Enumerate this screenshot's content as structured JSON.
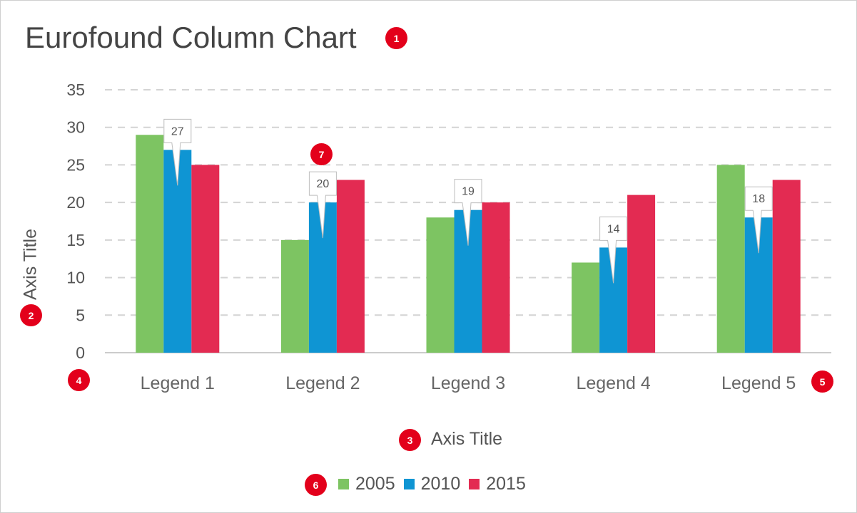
{
  "title": "Eurofound Column Chart",
  "badges": {
    "b1": "1",
    "b2": "2",
    "b3": "3",
    "b4": "4",
    "b5": "5",
    "b6": "6",
    "b7": "7"
  },
  "colors": {
    "2005": "#7dc462",
    "2010": "#0f95d3",
    "2015": "#e32b52",
    "grid": "#d4d4d4",
    "axis": "#cccccc",
    "badge": "#e3001b"
  },
  "chart_data": {
    "type": "bar",
    "title": "Eurofound Column Chart",
    "xlabel": "Axis Title",
    "ylabel": "Axis Title",
    "categories": [
      "Legend 1",
      "Legend 2",
      "Legend 3",
      "Legend 4",
      "Legend 5"
    ],
    "series": [
      {
        "name": "2005",
        "values": [
          29,
          15,
          18,
          12,
          25
        ]
      },
      {
        "name": "2010",
        "values": [
          27,
          20,
          19,
          14,
          18
        ]
      },
      {
        "name": "2015",
        "values": [
          25,
          23,
          20,
          21,
          23
        ]
      }
    ],
    "ylim": [
      0,
      35
    ],
    "yticks": [
      0,
      5,
      10,
      15,
      20,
      25,
      30,
      35
    ],
    "grid": true,
    "gridstyle": "dashed",
    "legend_position": "bottom",
    "data_labels": {
      "series": "2010",
      "labels": [
        "27",
        "20",
        "19",
        "14",
        "18"
      ]
    }
  }
}
